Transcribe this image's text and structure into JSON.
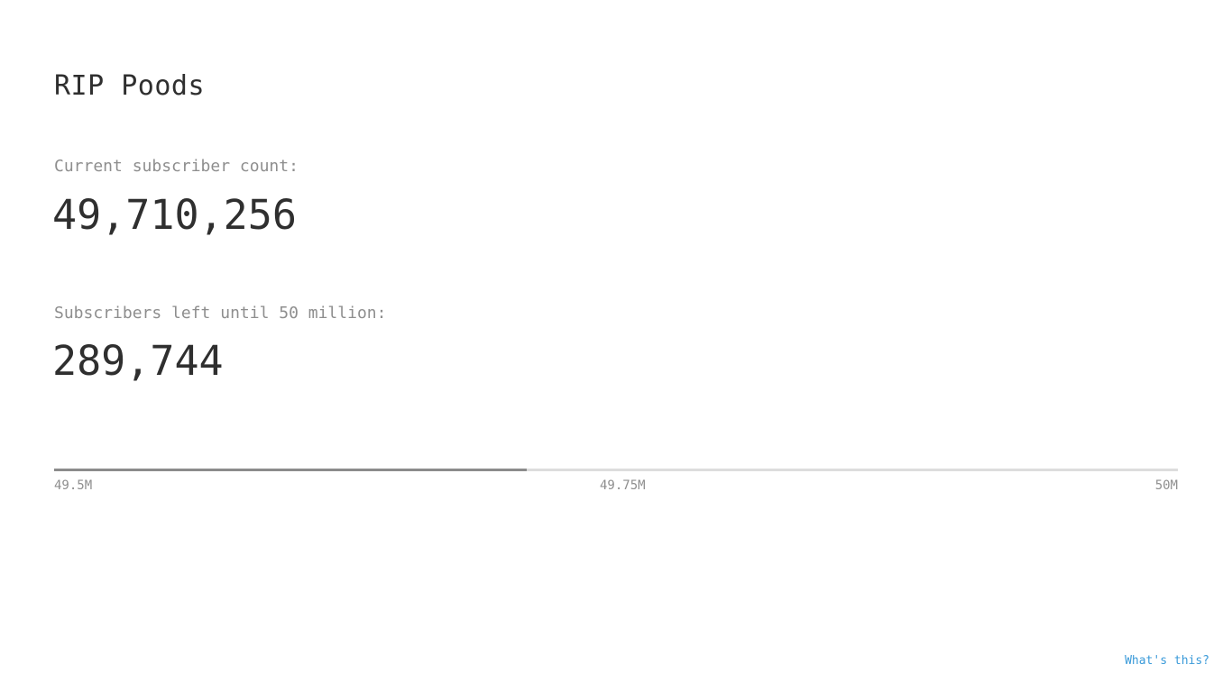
{
  "title": "RIP Poods",
  "current": {
    "label": "Current subscriber count:",
    "value": "49,710,256"
  },
  "remaining": {
    "label": "Subscribers left until 50 million:",
    "value": "289,744"
  },
  "progress": {
    "min_label": "49.5M",
    "mid_label": "49.75M",
    "max_label": "50M",
    "min": 49500000,
    "max": 50000000,
    "value": 49710256,
    "fill_color": "#8c8c8c",
    "track_color": "#dddddd"
  },
  "footer": {
    "link_label": "What's this?",
    "link_color": "#3a9ad9"
  }
}
